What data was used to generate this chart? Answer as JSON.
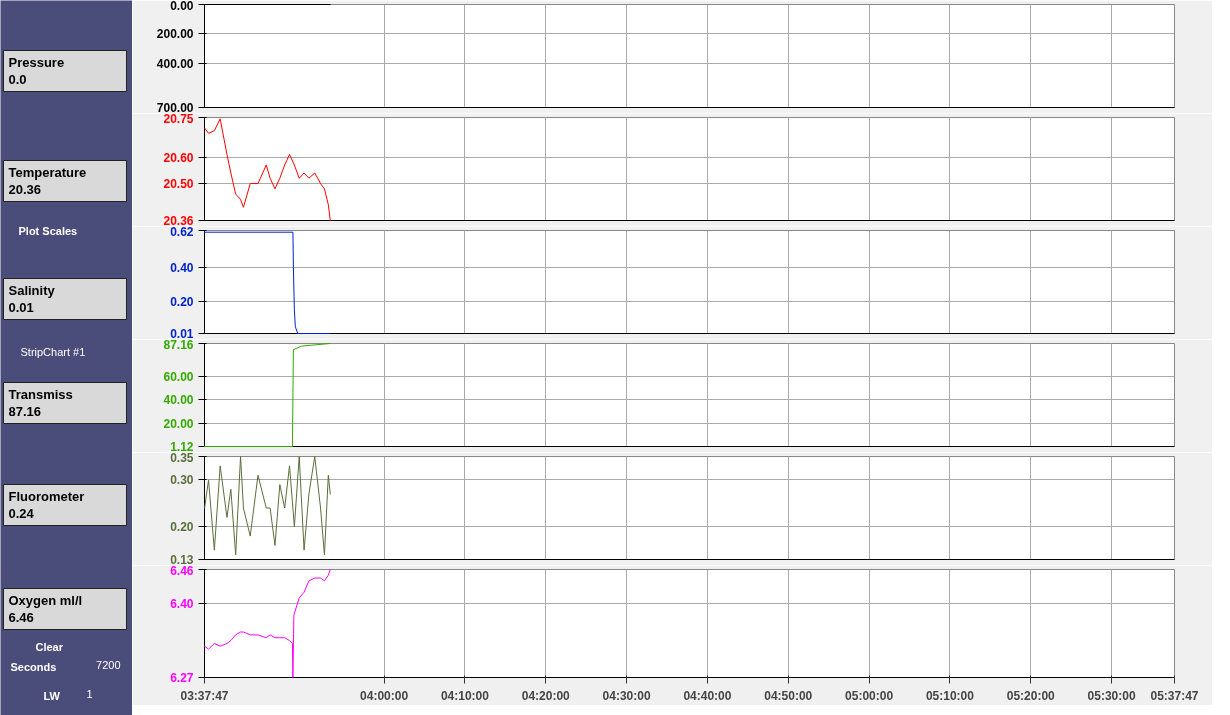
{
  "chart_data": [
    {
      "type": "other",
      "annotations": [
        "Pressure",
        "0.0",
        "Temperature",
        "20.36",
        "Plot Scales",
        "Salinity",
        "0.01",
        "StripChart #1",
        "Transmiss",
        "87.16",
        "Fluorometer",
        "0.24",
        "Oxygen ml/l",
        "6.46",
        "Clear",
        "Seconds",
        "7200",
        "LW",
        "1"
      ]
    },
    {
      "type": "line",
      "grid": true,
      "tick_labels": "y",
      "xlim": [
        3.6297,
        5.6297
      ],
      "xticks": [
        {
          "value": 3.6297,
          "label": null
        },
        {
          "value": 4,
          "label": null
        },
        {
          "value": 4.1667,
          "label": null
        },
        {
          "value": 4.3333,
          "label": null
        },
        {
          "value": 4.5,
          "label": null
        },
        {
          "value": 4.6667,
          "label": null
        },
        {
          "value": 4.8333,
          "label": null
        },
        {
          "value": 5,
          "label": null
        },
        {
          "value": 5.1667,
          "label": null
        },
        {
          "value": 5.3333,
          "label": null
        },
        {
          "value": 5.5,
          "label": null
        },
        {
          "value": 5.6297,
          "label": null
        }
      ],
      "ylim": [
        700,
        0
      ],
      "yticks": [
        {
          "value": 0,
          "label": "0.00"
        },
        {
          "value": 200,
          "label": "200.00"
        },
        {
          "value": 400,
          "label": "400.00"
        },
        {
          "value": 700,
          "label": "700.00"
        }
      ],
      "series": [
        {
          "color": "#000000",
          "x": [
            3.63,
            3.889
          ],
          "values": [
            0,
            0
          ]
        }
      ]
    },
    {
      "type": "line",
      "grid": true,
      "tick_labels": "y",
      "xlim": [
        3.6297,
        5.6297
      ],
      "xticks": [
        {
          "value": 3.6297,
          "label": null
        },
        {
          "value": 4,
          "label": null
        },
        {
          "value": 4.1667,
          "label": null
        },
        {
          "value": 4.3333,
          "label": null
        },
        {
          "value": 4.5,
          "label": null
        },
        {
          "value": 4.6667,
          "label": null
        },
        {
          "value": 4.8333,
          "label": null
        },
        {
          "value": 5,
          "label": null
        },
        {
          "value": 5.1667,
          "label": null
        },
        {
          "value": 5.3333,
          "label": null
        },
        {
          "value": 5.5,
          "label": null
        },
        {
          "value": 5.6297,
          "label": null
        }
      ],
      "ylim": [
        20.36,
        20.75
      ],
      "yticks": [
        {
          "value": 20.36,
          "label": "20.36"
        },
        {
          "value": 20.5,
          "label": "20.50"
        },
        {
          "value": 20.6,
          "label": "20.60"
        },
        {
          "value": 20.75,
          "label": "20.75"
        }
      ],
      "series": [
        {
          "color": "#ff0000",
          "x": [
            3.63,
            3.638,
            3.65,
            3.662,
            3.676,
            3.684,
            3.694,
            3.704,
            3.71,
            3.724,
            3.74,
            3.757,
            3.765,
            3.775,
            3.785,
            3.795,
            3.805,
            3.815,
            3.825,
            3.835,
            3.845,
            3.857,
            3.869,
            3.877,
            3.885,
            3.889
          ],
          "values": [
            20.71,
            20.69,
            20.7,
            20.745,
            20.61,
            20.54,
            20.46,
            20.44,
            20.41,
            20.5,
            20.5,
            20.57,
            20.52,
            20.48,
            20.52,
            20.57,
            20.61,
            20.57,
            20.52,
            20.54,
            20.52,
            20.54,
            20.5,
            20.48,
            20.42,
            20.36
          ]
        }
      ]
    },
    {
      "type": "line",
      "grid": true,
      "tick_labels": "y",
      "xlim": [
        3.6297,
        5.6297
      ],
      "xticks": [
        {
          "value": 3.6297,
          "label": null
        },
        {
          "value": 4,
          "label": null
        },
        {
          "value": 4.1667,
          "label": null
        },
        {
          "value": 4.3333,
          "label": null
        },
        {
          "value": 4.5,
          "label": null
        },
        {
          "value": 4.6667,
          "label": null
        },
        {
          "value": 4.8333,
          "label": null
        },
        {
          "value": 5,
          "label": null
        },
        {
          "value": 5.1667,
          "label": null
        },
        {
          "value": 5.3333,
          "label": null
        },
        {
          "value": 5.5,
          "label": null
        },
        {
          "value": 5.6297,
          "label": null
        }
      ],
      "ylim": [
        0.01,
        0.62
      ],
      "yticks": [
        {
          "value": 0.01,
          "label": "0.01"
        },
        {
          "value": 0.2,
          "label": "0.20"
        },
        {
          "value": 0.4,
          "label": "0.40"
        },
        {
          "value": 0.62,
          "label": "0.62"
        }
      ],
      "series": [
        {
          "color": "#0022cc",
          "x": [
            3.63,
            3.812,
            3.813,
            3.815,
            3.817,
            3.822,
            3.889
          ],
          "values": [
            0.61,
            0.61,
            0.4,
            0.15,
            0.05,
            0.01,
            0.01
          ]
        }
      ]
    },
    {
      "type": "line",
      "grid": true,
      "tick_labels": "y",
      "xlim": [
        3.6297,
        5.6297
      ],
      "xticks": [
        {
          "value": 3.6297,
          "label": null
        },
        {
          "value": 4,
          "label": null
        },
        {
          "value": 4.1667,
          "label": null
        },
        {
          "value": 4.3333,
          "label": null
        },
        {
          "value": 4.5,
          "label": null
        },
        {
          "value": 4.6667,
          "label": null
        },
        {
          "value": 4.8333,
          "label": null
        },
        {
          "value": 5,
          "label": null
        },
        {
          "value": 5.1667,
          "label": null
        },
        {
          "value": 5.3333,
          "label": null
        },
        {
          "value": 5.5,
          "label": null
        },
        {
          "value": 5.6297,
          "label": null
        }
      ],
      "ylim": [
        1.12,
        87.16
      ],
      "yticks": [
        {
          "value": 1.12,
          "label": "1.12"
        },
        {
          "value": 20,
          "label": "20.00"
        },
        {
          "value": 40,
          "label": "40.00"
        },
        {
          "value": 60,
          "label": "60.00"
        },
        {
          "value": 87.16,
          "label": "87.16"
        }
      ],
      "series": [
        {
          "color": "#33aa00",
          "x": [
            3.63,
            3.811,
            3.813,
            3.83,
            3.889
          ],
          "values": [
            1.12,
            1.12,
            82,
            85,
            87.16
          ]
        }
      ]
    },
    {
      "type": "line",
      "grid": true,
      "tick_labels": "y",
      "xlim": [
        3.6297,
        5.6297
      ],
      "xticks": [
        {
          "value": 3.6297,
          "label": null
        },
        {
          "value": 4,
          "label": null
        },
        {
          "value": 4.1667,
          "label": null
        },
        {
          "value": 4.3333,
          "label": null
        },
        {
          "value": 4.5,
          "label": null
        },
        {
          "value": 4.6667,
          "label": null
        },
        {
          "value": 4.8333,
          "label": null
        },
        {
          "value": 5,
          "label": null
        },
        {
          "value": 5.1667,
          "label": null
        },
        {
          "value": 5.3333,
          "label": null
        },
        {
          "value": 5.5,
          "label": null
        },
        {
          "value": 5.6297,
          "label": null
        }
      ],
      "ylim": [
        0.13,
        0.35
      ],
      "yticks": [
        {
          "value": 0.13,
          "label": "0.13"
        },
        {
          "value": 0.2,
          "label": "0.20"
        },
        {
          "value": 0.3,
          "label": "0.30"
        },
        {
          "value": 0.35,
          "label": "0.35"
        }
      ],
      "series": [
        {
          "color": "#5a6e3c",
          "x": [
            3.63,
            3.638,
            3.65,
            3.662,
            3.676,
            3.684,
            3.694,
            3.704,
            3.71,
            3.724,
            3.74,
            3.757,
            3.765,
            3.775,
            3.785,
            3.795,
            3.805,
            3.815,
            3.825,
            3.835,
            3.845,
            3.857,
            3.869,
            3.877,
            3.885,
            3.889
          ],
          "values": [
            0.24,
            0.3,
            0.15,
            0.33,
            0.22,
            0.28,
            0.14,
            0.35,
            0.24,
            0.18,
            0.31,
            0.24,
            0.24,
            0.16,
            0.29,
            0.24,
            0.33,
            0.2,
            0.35,
            0.15,
            0.27,
            0.35,
            0.24,
            0.14,
            0.31,
            0.27
          ]
        }
      ]
    },
    {
      "type": "line",
      "grid": true,
      "xlim": [
        3.6297,
        5.6297
      ],
      "xticks": [
        {
          "value": 3.6297,
          "label": "03:37:47"
        },
        {
          "value": 4,
          "label": "04:00:00"
        },
        {
          "value": 4.1667,
          "label": "04:10:00"
        },
        {
          "value": 4.3333,
          "label": "04:20:00"
        },
        {
          "value": 4.5,
          "label": "04:30:00"
        },
        {
          "value": 4.6667,
          "label": "04:40:00"
        },
        {
          "value": 4.8333,
          "label": "04:50:00"
        },
        {
          "value": 5,
          "label": "05:00:00"
        },
        {
          "value": 5.1667,
          "label": "05:10:00"
        },
        {
          "value": 5.3333,
          "label": "05:20:00"
        },
        {
          "value": 5.5,
          "label": "05:30:00"
        },
        {
          "value": 5.6297,
          "label": "05:37:47"
        }
      ],
      "ylim": [
        6.27,
        6.46
      ],
      "yticks": [
        {
          "value": 6.27,
          "label": "6.27"
        },
        {
          "value": 6.4,
          "label": "6.40"
        },
        {
          "value": 6.46,
          "label": "6.46"
        }
      ],
      "series": [
        {
          "color": "#ff00ff",
          "x": [
            3.63,
            3.638,
            3.65,
            3.662,
            3.676,
            3.684,
            3.694,
            3.704,
            3.71,
            3.724,
            3.74,
            3.757,
            3.765,
            3.775,
            3.785,
            3.795,
            3.805,
            3.811,
            3.812,
            3.814,
            3.825,
            3.835,
            3.845,
            3.857,
            3.869,
            3.877,
            3.885,
            3.889
          ],
          "values": [
            6.325,
            6.32,
            6.33,
            6.325,
            6.33,
            6.335,
            6.345,
            6.35,
            6.35,
            6.345,
            6.345,
            6.34,
            6.345,
            6.34,
            6.34,
            6.34,
            6.335,
            6.33,
            6.27,
            6.38,
            6.41,
            6.42,
            6.44,
            6.445,
            6.445,
            6.44,
            6.45,
            6.46
          ]
        }
      ]
    }
  ]
}
